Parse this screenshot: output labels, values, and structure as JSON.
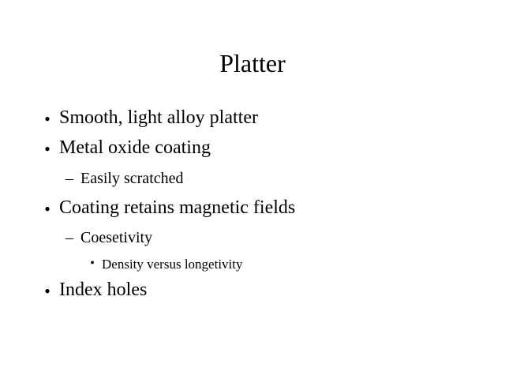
{
  "slide": {
    "title": "Platter",
    "items": [
      {
        "level": 1,
        "marker": "•",
        "text": "Smooth, light alloy platter"
      },
      {
        "level": 1,
        "marker": "•",
        "text": "Metal oxide coating"
      },
      {
        "level": 2,
        "marker": "–",
        "text": "Easily scratched"
      },
      {
        "level": 1,
        "marker": "•",
        "text": "Coating retains magnetic fields"
      },
      {
        "level": 2,
        "marker": "–",
        "text": "Coesetivity"
      },
      {
        "level": 3,
        "marker": "•",
        "text": "Density versus longetivity"
      },
      {
        "level": 1,
        "marker": "•",
        "text": "Index holes"
      }
    ]
  }
}
